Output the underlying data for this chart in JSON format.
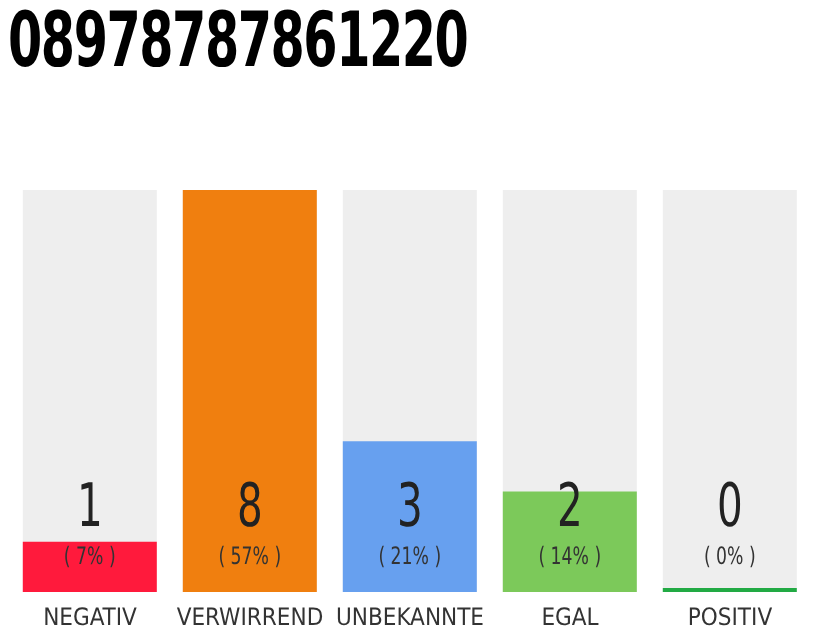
{
  "chart_data": {
    "type": "bar",
    "title": "08978787861220",
    "categories": [
      "NEGATIV",
      "VERWIRREND",
      "UNBEKANNTE",
      "EGAL",
      "POSITIV"
    ],
    "values": [
      1,
      8,
      3,
      2,
      0
    ],
    "colors": [
      "#ff1a3c",
      "#f07f0f",
      "#67a0ef",
      "#7cc95a",
      "#22aa44"
    ],
    "data_labels": true,
    "annotations": [
      "( 7% )",
      "( 57% )",
      "( 21% )",
      "( 14% )",
      "( 0% )"
    ]
  }
}
